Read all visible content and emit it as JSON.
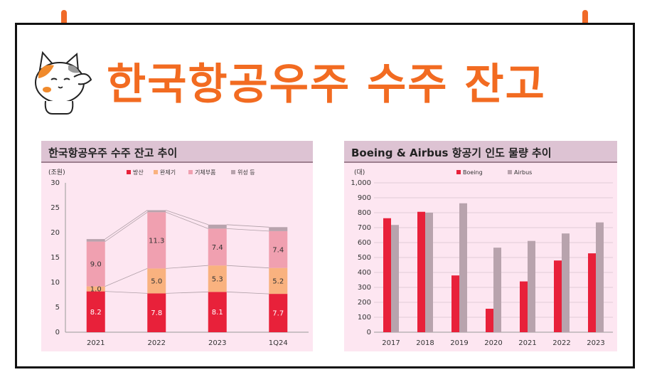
{
  "header": {
    "title": "한국항공우주 수주 잔고"
  },
  "colors": {
    "accent": "#f26b21",
    "defense": "#e8213a",
    "complete": "#f9b27f",
    "parts": "#f0a0b0",
    "satellite": "#b8a3ad",
    "boeing": "#e8213a",
    "airbus": "#b8a3ad"
  },
  "chart_data": [
    {
      "type": "bar",
      "stacked": true,
      "title": "한국항공우주 수주 잔고 추이",
      "ylabel": "(조원)",
      "ylim": [
        0,
        30
      ],
      "yticks": [
        "0",
        "5",
        "10",
        "15",
        "20",
        "25",
        "30"
      ],
      "categories": [
        "2021",
        "2022",
        "2023",
        "1Q24"
      ],
      "legend_position": "top",
      "series": [
        {
          "name": "방산",
          "values": [
            8.2,
            7.8,
            8.1,
            7.7
          ],
          "labels": [
            "8.2",
            "7.8",
            "8.1",
            "7.7"
          ]
        },
        {
          "name": "완제기",
          "values": [
            1.0,
            5.0,
            5.3,
            5.2
          ],
          "labels": [
            "1.0",
            "5.0",
            "5.3",
            "5.2"
          ]
        },
        {
          "name": "기체부품",
          "values": [
            9.0,
            11.3,
            7.4,
            7.4
          ],
          "labels": [
            "9.0",
            "11.3",
            "7.4",
            "7.4"
          ]
        },
        {
          "name": "위성 등",
          "values": [
            0.5,
            0.4,
            0.8,
            0.8
          ]
        }
      ]
    },
    {
      "type": "bar",
      "title": "Boeing & Airbus 항공기 인도 물량 추이",
      "ylabel": "(대)",
      "ylim": [
        0,
        1000
      ],
      "yticks": [
        "0",
        "100",
        "200",
        "300",
        "400",
        "500",
        "600",
        "700",
        "800",
        "900",
        "1,000"
      ],
      "categories": [
        "2017",
        "2018",
        "2019",
        "2020",
        "2021",
        "2022",
        "2023"
      ],
      "legend_position": "top",
      "series": [
        {
          "name": "Boeing",
          "values": [
            763,
            806,
            380,
            157,
            340,
            480,
            528
          ]
        },
        {
          "name": "Airbus",
          "values": [
            718,
            800,
            863,
            566,
            611,
            661,
            735
          ]
        }
      ]
    }
  ]
}
